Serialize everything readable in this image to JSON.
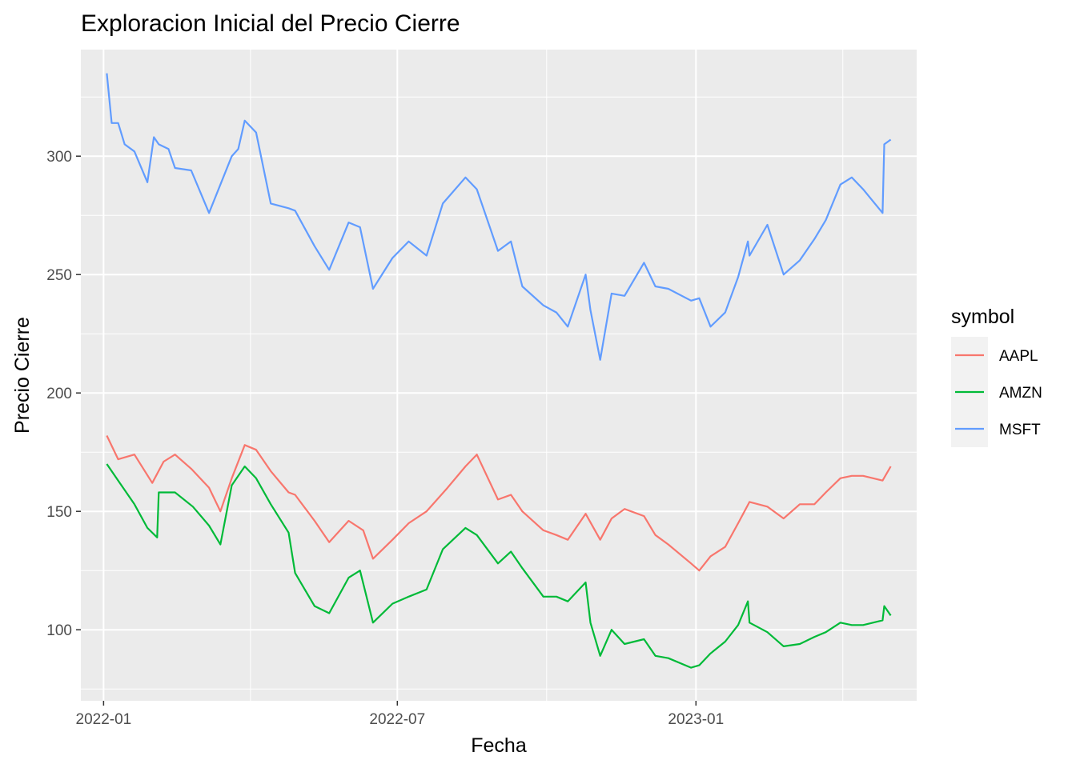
{
  "chart_data": {
    "type": "line",
    "title": "Exploracion Inicial del Precio Cierre",
    "xlabel": "Fecha",
    "ylabel": "Precio Cierre",
    "x_ticks": [
      "2022-01",
      "2022-07",
      "2023-01"
    ],
    "y_ticks": [
      100,
      150,
      200,
      250,
      300
    ],
    "xlim": [
      "2021-12-18",
      "2023-05-17"
    ],
    "ylim": [
      70,
      345
    ],
    "grid": true,
    "legend": {
      "title": "symbol",
      "position": "right"
    },
    "series": [
      {
        "name": "AAPL",
        "color": "#F8766D",
        "points": [
          [
            "2022-01-03",
            182
          ],
          [
            "2022-01-10",
            172
          ],
          [
            "2022-01-20",
            174
          ],
          [
            "2022-01-31",
            162
          ],
          [
            "2022-02-07",
            171
          ],
          [
            "2022-02-14",
            174
          ],
          [
            "2022-02-24",
            168
          ],
          [
            "2022-03-07",
            160
          ],
          [
            "2022-03-14",
            150
          ],
          [
            "2022-03-21",
            164
          ],
          [
            "2022-03-29",
            178
          ],
          [
            "2022-04-05",
            176
          ],
          [
            "2022-04-14",
            167
          ],
          [
            "2022-04-25",
            158
          ],
          [
            "2022-04-29",
            157
          ],
          [
            "2022-05-11",
            146
          ],
          [
            "2022-05-20",
            137
          ],
          [
            "2022-06-01",
            146
          ],
          [
            "2022-06-10",
            142
          ],
          [
            "2022-06-16",
            130
          ],
          [
            "2022-06-28",
            138
          ],
          [
            "2022-07-08",
            145
          ],
          [
            "2022-07-19",
            150
          ],
          [
            "2022-08-01",
            160
          ],
          [
            "2022-08-12",
            169
          ],
          [
            "2022-08-19",
            174
          ],
          [
            "2022-09-01",
            155
          ],
          [
            "2022-09-09",
            157
          ],
          [
            "2022-09-16",
            150
          ],
          [
            "2022-09-29",
            142
          ],
          [
            "2022-10-07",
            140
          ],
          [
            "2022-10-14",
            138
          ],
          [
            "2022-10-25",
            149
          ],
          [
            "2022-11-03",
            138
          ],
          [
            "2022-11-10",
            147
          ],
          [
            "2022-11-18",
            151
          ],
          [
            "2022-11-30",
            148
          ],
          [
            "2022-12-07",
            140
          ],
          [
            "2022-12-15",
            136
          ],
          [
            "2022-12-29",
            128
          ],
          [
            "2023-01-03",
            125
          ],
          [
            "2023-01-10",
            131
          ],
          [
            "2023-01-19",
            135
          ],
          [
            "2023-01-27",
            145
          ],
          [
            "2023-02-03",
            154
          ],
          [
            "2023-02-14",
            152
          ],
          [
            "2023-02-24",
            147
          ],
          [
            "2023-03-06",
            153
          ],
          [
            "2023-03-15",
            153
          ],
          [
            "2023-03-22",
            158
          ],
          [
            "2023-03-31",
            164
          ],
          [
            "2023-04-07",
            165
          ],
          [
            "2023-04-14",
            165
          ],
          [
            "2023-04-26",
            163
          ],
          [
            "2023-05-01",
            169
          ]
        ]
      },
      {
        "name": "AMZN",
        "color": "#00BA38",
        "points": [
          [
            "2022-01-03",
            170
          ],
          [
            "2022-01-10",
            163
          ],
          [
            "2022-01-20",
            153
          ],
          [
            "2022-01-28",
            143
          ],
          [
            "2022-02-03",
            139
          ],
          [
            "2022-02-04",
            158
          ],
          [
            "2022-02-14",
            158
          ],
          [
            "2022-02-25",
            152
          ],
          [
            "2022-03-07",
            144
          ],
          [
            "2022-03-14",
            136
          ],
          [
            "2022-03-21",
            161
          ],
          [
            "2022-03-29",
            169
          ],
          [
            "2022-04-05",
            164
          ],
          [
            "2022-04-14",
            153
          ],
          [
            "2022-04-25",
            141
          ],
          [
            "2022-04-29",
            124
          ],
          [
            "2022-05-11",
            110
          ],
          [
            "2022-05-20",
            107
          ],
          [
            "2022-06-01",
            122
          ],
          [
            "2022-06-08",
            125
          ],
          [
            "2022-06-16",
            103
          ],
          [
            "2022-06-28",
            111
          ],
          [
            "2022-07-08",
            114
          ],
          [
            "2022-07-19",
            117
          ],
          [
            "2022-07-29",
            134
          ],
          [
            "2022-08-12",
            143
          ],
          [
            "2022-08-19",
            140
          ],
          [
            "2022-09-01",
            128
          ],
          [
            "2022-09-09",
            133
          ],
          [
            "2022-09-16",
            126
          ],
          [
            "2022-09-29",
            114
          ],
          [
            "2022-10-07",
            114
          ],
          [
            "2022-10-14",
            112
          ],
          [
            "2022-10-25",
            120
          ],
          [
            "2022-10-28",
            103
          ],
          [
            "2022-11-03",
            89
          ],
          [
            "2022-11-10",
            100
          ],
          [
            "2022-11-18",
            94
          ],
          [
            "2022-11-30",
            96
          ],
          [
            "2022-12-07",
            89
          ],
          [
            "2022-12-15",
            88
          ],
          [
            "2022-12-29",
            84
          ],
          [
            "2023-01-03",
            85
          ],
          [
            "2023-01-10",
            90
          ],
          [
            "2023-01-19",
            95
          ],
          [
            "2023-01-27",
            102
          ],
          [
            "2023-02-02",
            112
          ],
          [
            "2023-02-03",
            103
          ],
          [
            "2023-02-14",
            99
          ],
          [
            "2023-02-24",
            93
          ],
          [
            "2023-03-06",
            94
          ],
          [
            "2023-03-15",
            97
          ],
          [
            "2023-03-22",
            99
          ],
          [
            "2023-03-31",
            103
          ],
          [
            "2023-04-07",
            102
          ],
          [
            "2023-04-14",
            102
          ],
          [
            "2023-04-26",
            104
          ],
          [
            "2023-04-27",
            110
          ],
          [
            "2023-05-01",
            106
          ]
        ]
      },
      {
        "name": "MSFT",
        "color": "#619CFF",
        "points": [
          [
            "2022-01-03",
            335
          ],
          [
            "2022-01-06",
            314
          ],
          [
            "2022-01-10",
            314
          ],
          [
            "2022-01-14",
            305
          ],
          [
            "2022-01-20",
            302
          ],
          [
            "2022-01-28",
            289
          ],
          [
            "2022-02-01",
            308
          ],
          [
            "2022-02-04",
            305
          ],
          [
            "2022-02-10",
            303
          ],
          [
            "2022-02-14",
            295
          ],
          [
            "2022-02-24",
            294
          ],
          [
            "2022-03-07",
            276
          ],
          [
            "2022-03-14",
            288
          ],
          [
            "2022-03-21",
            300
          ],
          [
            "2022-03-25",
            303
          ],
          [
            "2022-03-29",
            315
          ],
          [
            "2022-04-05",
            310
          ],
          [
            "2022-04-14",
            280
          ],
          [
            "2022-04-25",
            278
          ],
          [
            "2022-04-29",
            277
          ],
          [
            "2022-05-11",
            262
          ],
          [
            "2022-05-20",
            252
          ],
          [
            "2022-06-01",
            272
          ],
          [
            "2022-06-08",
            270
          ],
          [
            "2022-06-16",
            244
          ],
          [
            "2022-06-28",
            257
          ],
          [
            "2022-07-08",
            264
          ],
          [
            "2022-07-19",
            258
          ],
          [
            "2022-07-29",
            280
          ],
          [
            "2022-08-12",
            291
          ],
          [
            "2022-08-19",
            286
          ],
          [
            "2022-09-01",
            260
          ],
          [
            "2022-09-09",
            264
          ],
          [
            "2022-09-16",
            245
          ],
          [
            "2022-09-29",
            237
          ],
          [
            "2022-10-07",
            234
          ],
          [
            "2022-10-14",
            228
          ],
          [
            "2022-10-25",
            250
          ],
          [
            "2022-10-28",
            235
          ],
          [
            "2022-11-03",
            214
          ],
          [
            "2022-11-10",
            242
          ],
          [
            "2022-11-18",
            241
          ],
          [
            "2022-11-30",
            255
          ],
          [
            "2022-12-07",
            245
          ],
          [
            "2022-12-15",
            244
          ],
          [
            "2022-12-29",
            239
          ],
          [
            "2023-01-03",
            240
          ],
          [
            "2023-01-10",
            228
          ],
          [
            "2023-01-19",
            234
          ],
          [
            "2023-01-27",
            249
          ],
          [
            "2023-02-02",
            264
          ],
          [
            "2023-02-03",
            258
          ],
          [
            "2023-02-14",
            271
          ],
          [
            "2023-02-24",
            250
          ],
          [
            "2023-03-06",
            256
          ],
          [
            "2023-03-15",
            265
          ],
          [
            "2023-03-22",
            273
          ],
          [
            "2023-03-31",
            288
          ],
          [
            "2023-04-07",
            291
          ],
          [
            "2023-04-14",
            286
          ],
          [
            "2023-04-26",
            276
          ],
          [
            "2023-04-27",
            305
          ],
          [
            "2023-05-01",
            307
          ]
        ]
      }
    ]
  }
}
